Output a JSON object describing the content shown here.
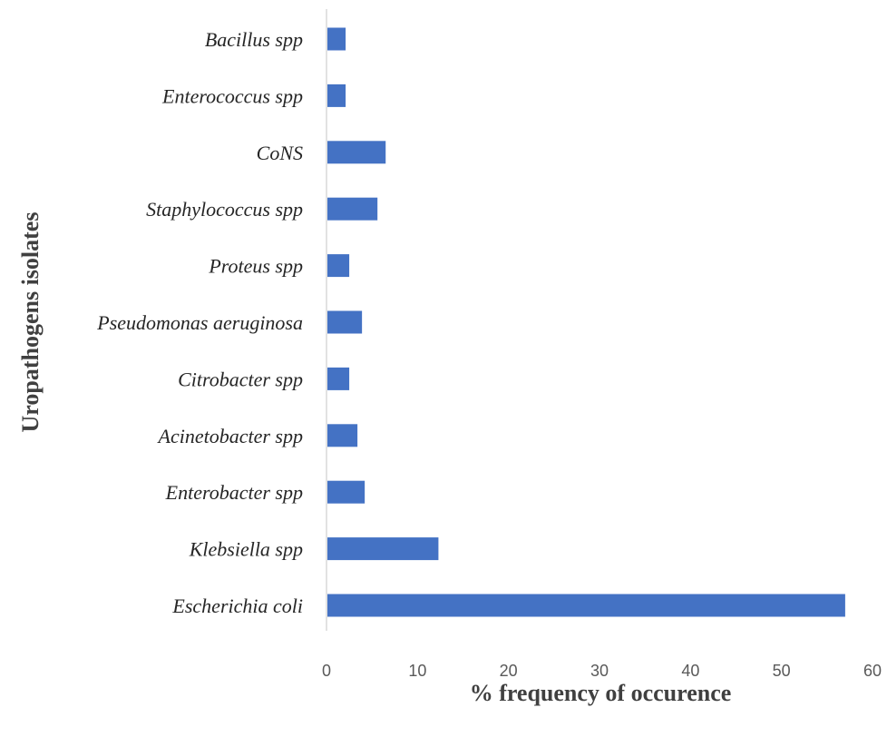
{
  "chart_data": {
    "type": "bar",
    "orientation": "horizontal",
    "categories": [
      "Bacillus spp",
      "Enterococcus spp",
      "CoNS",
      "Staphylococcus spp",
      "Proteus spp",
      "Pseudomonas aeruginosa",
      "Citrobacter spp",
      "Acinetobacter spp",
      "Enterobacter spp",
      "Klebsiella spp",
      "Escherichia coli"
    ],
    "values": [
      2.1,
      2.1,
      6.5,
      5.6,
      2.5,
      3.9,
      2.5,
      3.4,
      4.2,
      12.3,
      57.0
    ],
    "xlabel": "% frequency of occurence",
    "ylabel": "Uropathogens isolates",
    "xlim": [
      0,
      60
    ],
    "xticks": [
      "0",
      "10",
      "20",
      "30",
      "40",
      "50",
      "60"
    ],
    "grid": false,
    "legend": "none",
    "bar_color": "#4472C4",
    "axis_color": "#D9D9D9"
  }
}
